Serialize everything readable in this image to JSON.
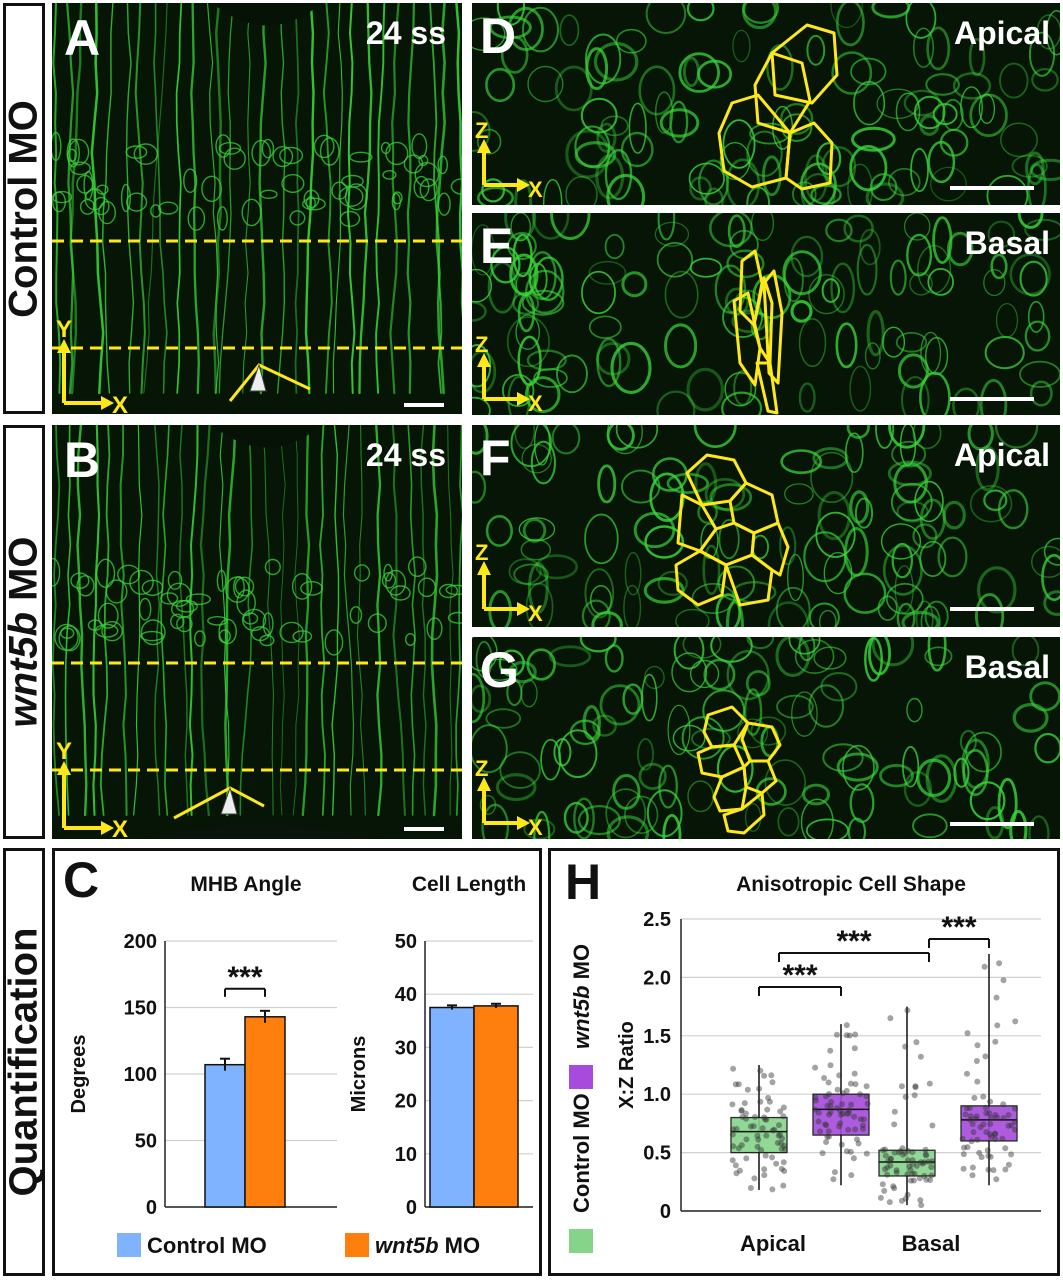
{
  "row_labels": {
    "top": "Control MO",
    "bottom_gene": "wnt5b",
    "bottom_suffix": " MO",
    "quant": "Quantification"
  },
  "panels": {
    "A": {
      "letter": "A",
      "stage": "24 ss"
    },
    "B": {
      "letter": "B",
      "stage": "24 ss"
    },
    "D": {
      "letter": "D",
      "label": "Apical"
    },
    "E": {
      "letter": "E",
      "label": "Basal"
    },
    "F": {
      "letter": "F",
      "label": "Apical"
    },
    "G": {
      "letter": "G",
      "label": "Basal"
    }
  },
  "axes_labels": {
    "y": "Y",
    "x": "X",
    "z": "Z"
  },
  "colors": {
    "control": "#7fb2ff",
    "wnt5b": "#ff7f0e",
    "box_control": "#86d38a",
    "box_wnt5b": "#a64bdb",
    "fluor": "#39d639",
    "annot": "#ffe81a"
  },
  "panel_C": {
    "letter": "C"
  },
  "panel_H": {
    "letter": "H"
  },
  "chart_data": [
    {
      "type": "bar",
      "title": "MHB Angle",
      "ylabel": "Degrees",
      "ylim": [
        0,
        200
      ],
      "yticks": [
        0,
        50,
        100,
        150,
        200
      ],
      "categories": [
        "Control MO",
        "wnt5b MO"
      ],
      "values": [
        107,
        143
      ],
      "errors": [
        4.5,
        4.5
      ],
      "significance": "***"
    },
    {
      "type": "bar",
      "title": "Cell Length",
      "ylabel": "Microns",
      "ylim": [
        0,
        50
      ],
      "yticks": [
        0,
        10,
        20,
        30,
        40,
        50
      ],
      "categories": [
        "Control MO",
        "wnt5b MO"
      ],
      "values": [
        37.5,
        37.8
      ],
      "errors": [
        0.4,
        0.4
      ]
    },
    {
      "type": "box",
      "title": "Anisotropic Cell Shape",
      "ylabel": "X:Z Ratio",
      "ylim": [
        0,
        2.5
      ],
      "yticks": [
        0,
        0.5,
        1.0,
        1.5,
        2.0,
        2.5
      ],
      "ytick_labels": [
        "0",
        "0.5",
        "1.0",
        "1.5",
        "2.0",
        "2.5"
      ],
      "categories": [
        "Apical",
        "Basal"
      ],
      "series": [
        {
          "name": "Control MO",
          "groups": [
            {
              "q1": 0.5,
              "median": 0.68,
              "q3": 0.8,
              "whisker_low": 0.18,
              "whisker_high": 1.25
            },
            {
              "q1": 0.3,
              "median": 0.42,
              "q3": 0.52,
              "whisker_low": 0.05,
              "whisker_high": 1.75
            }
          ]
        },
        {
          "name": "wnt5b MO",
          "groups": [
            {
              "q1": 0.65,
              "median": 0.87,
              "q3": 1.0,
              "whisker_low": 0.22,
              "whisker_high": 1.6
            },
            {
              "q1": 0.6,
              "median": 0.78,
              "q3": 0.9,
              "whisker_low": 0.22,
              "whisker_high": 2.2
            }
          ]
        }
      ],
      "significance": [
        "***",
        "***",
        "***"
      ]
    }
  ],
  "legend": {
    "control": "Control MO",
    "wnt5b_gene": "wnt5b",
    "wnt5b_suffix": " MO"
  }
}
